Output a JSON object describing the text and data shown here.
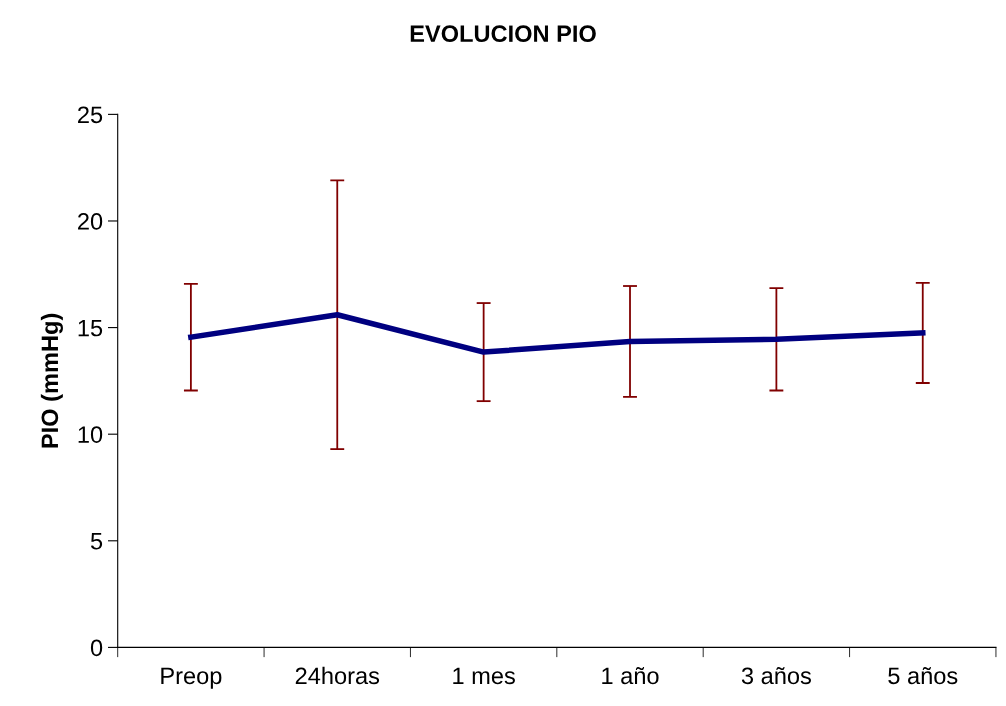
{
  "chart_data": {
    "type": "line",
    "title": "EVOLUCION PIO",
    "ylabel": "PIO (mmHg)",
    "categories": [
      "Preop",
      "24horas",
      "1 mes",
      "1 año",
      "3 años",
      "5 años"
    ],
    "series": [
      {
        "color": "#000080",
        "values": [
          14.55,
          15.6,
          13.85,
          14.35,
          14.45,
          14.75
        ],
        "errors": [
          2.5,
          6.3,
          2.3,
          2.6,
          2.4,
          2.35
        ]
      }
    ],
    "ylim": [
      0,
      25
    ],
    "yticks": [
      0,
      5,
      10,
      15,
      20,
      25
    ],
    "grid": false,
    "marker": "none",
    "line_style": "solid"
  }
}
